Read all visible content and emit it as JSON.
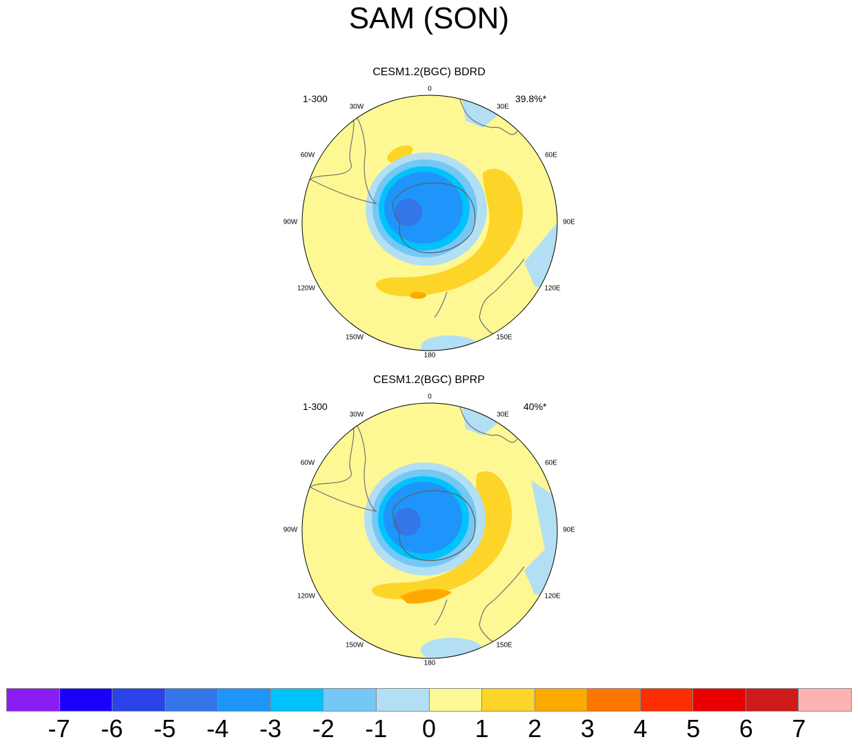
{
  "title": "SAM (SON)",
  "panels": [
    {
      "title": "CESM1.2(BGC) BDRD",
      "left_label": "1-300",
      "right_label": "39.8%*",
      "lon_labels": [
        "0",
        "30E",
        "60E",
        "90E",
        "120E",
        "150E",
        "180",
        "150W",
        "120W",
        "90W",
        "60W",
        "30W"
      ]
    },
    {
      "title": "CESM1.2(BGC) BPRP",
      "left_label": "1-300",
      "right_label": "40%*",
      "lon_labels": [
        "0",
        "30E",
        "60E",
        "90E",
        "120E",
        "150E",
        "180",
        "150W",
        "120W",
        "90W",
        "60W",
        "30W"
      ]
    }
  ],
  "colorbar": {
    "colors": [
      "#8a1ef2",
      "#1a00fb",
      "#2a44ea",
      "#3475e8",
      "#1e95fa",
      "#00c3fc",
      "#74c8f5",
      "#b3dff4",
      "#fdf894",
      "#fdd428",
      "#fdaa00",
      "#fd7600",
      "#fd2e00",
      "#e80000",
      "#cf1b1b",
      "#feb3b3"
    ],
    "ticks": [
      "-7",
      "-6",
      "-5",
      "-4",
      "-3",
      "-2",
      "-1",
      "0",
      "1",
      "2",
      "3",
      "4",
      "5",
      "6",
      "7"
    ]
  }
}
